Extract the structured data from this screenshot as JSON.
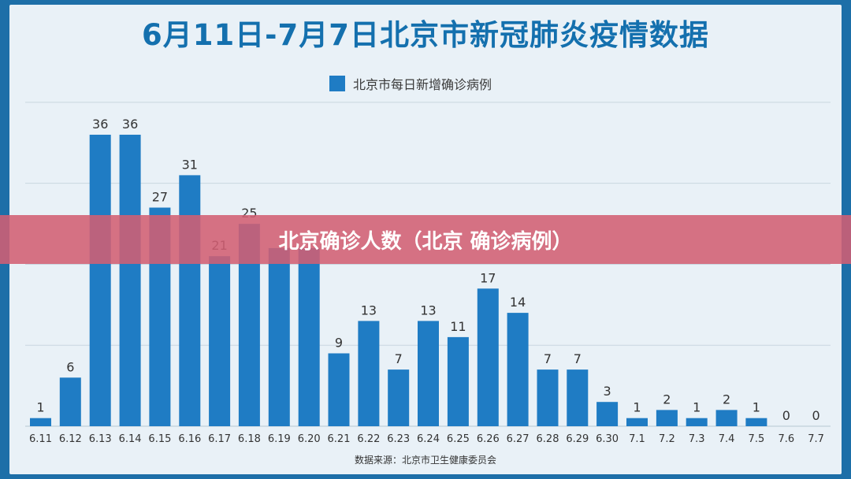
{
  "title": "6月11日-7月7日北京市新冠肺炎疫情数据",
  "banner": "北京确诊人数（北京 确诊病例）",
  "source": "数据来源：北京市卫生健康委员会",
  "colors": {
    "bar": "#1f7cc4",
    "title": "#1470ae",
    "banner": "#d25f73"
  },
  "chart_data": {
    "type": "bar",
    "title": "6月11日-7月7日北京市新冠肺炎疫情数据",
    "categories": [
      "6.11",
      "6.12",
      "6.13",
      "6.14",
      "6.15",
      "6.16",
      "6.17",
      "6.18",
      "6.19",
      "6.20",
      "6.21",
      "6.22",
      "6.23",
      "6.24",
      "6.25",
      "6.26",
      "6.27",
      "6.28",
      "6.29",
      "6.30",
      "7.1",
      "7.2",
      "7.3",
      "7.4",
      "7.5",
      "7.6",
      "7.7"
    ],
    "series": [
      {
        "name": "北京市每日新增确诊病例",
        "values": [
          1,
          6,
          36,
          36,
          27,
          31,
          21,
          25,
          22,
          22,
          9,
          13,
          7,
          13,
          11,
          17,
          14,
          7,
          7,
          3,
          1,
          2,
          1,
          2,
          1,
          0,
          0
        ]
      }
    ],
    "value_labels": [
      "1",
      "6",
      "36",
      "36",
      "27",
      "31",
      "21",
      "25",
      "",
      "",
      "9",
      "13",
      "7",
      "13",
      "11",
      "17",
      "14",
      "7",
      "7",
      "3",
      "1",
      "2",
      "1",
      "2",
      "1",
      "0",
      "0"
    ],
    "ylim": [
      0,
      40
    ],
    "grid": true,
    "legend": "top-center"
  }
}
